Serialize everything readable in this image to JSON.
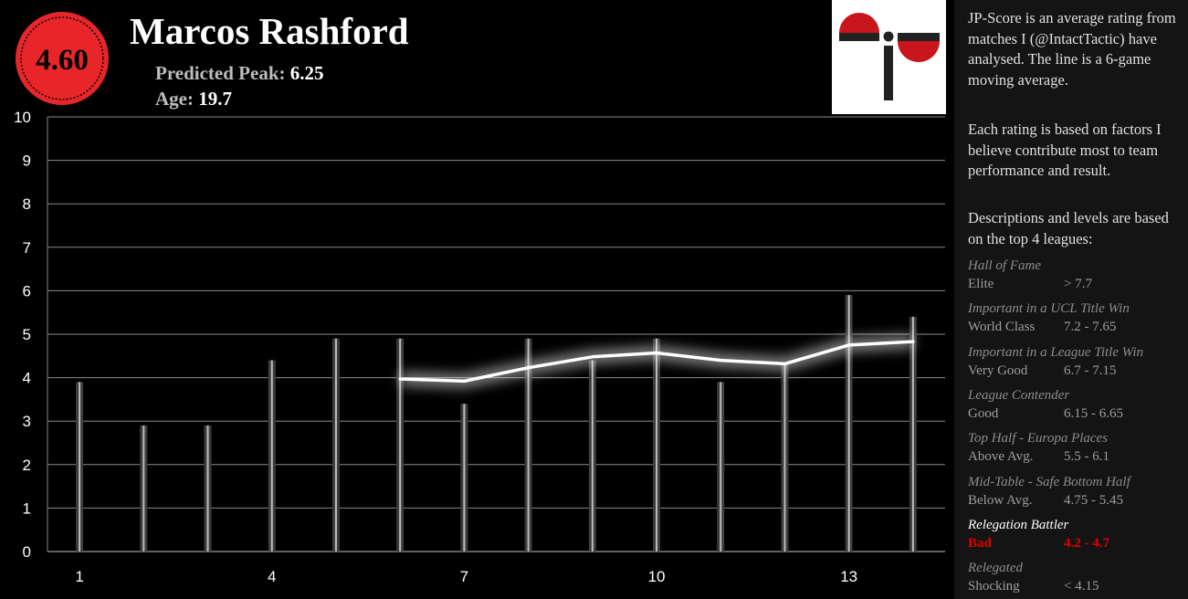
{
  "header": {
    "score": "4.60",
    "name": "Marcos Rashford",
    "peak_label": "Predicted Peak:",
    "peak_value": "6.25",
    "age_label": "Age:",
    "age_value": "19.7"
  },
  "colors": {
    "accent_red": "#e8262a",
    "badge_ring": "#e8262a",
    "bar": "#9a9a9a",
    "line": "#ffffff",
    "active_level": "#e10000"
  },
  "logo": {
    "icon": "jp-logo-icon"
  },
  "sidebar": {
    "intro": "JP-Score is an average rating from matches I (@IntactTactic) have analysed. The line is a 6-game moving average.",
    "factors": "Each rating is based on factors I believe contribute most to team performance and result.",
    "levels_intro": "Descriptions and levels are based on the top 4 leagues:",
    "levels": [
      {
        "title": "Hall of Fame",
        "name": "Elite",
        "range": "> 7.7",
        "active": false
      },
      {
        "title": "Important in a UCL Title Win",
        "name": "World Class",
        "range": "7.2 - 7.65",
        "active": false
      },
      {
        "title": "Important in a League Title Win",
        "name": "Very Good",
        "range": "6.7 - 7.15",
        "active": false
      },
      {
        "title": "League Contender",
        "name": "Good",
        "range": "6.15 - 6.65",
        "active": false
      },
      {
        "title": "Top Half - Europa Places",
        "name": "Above Avg.",
        "range": "5.5 - 6.1",
        "active": false
      },
      {
        "title": "Mid-Table - Safe Bottom Half",
        "name": "Below Avg.",
        "range": "4.75 - 5.45",
        "active": false
      },
      {
        "title": "Relegation Battler",
        "name": "Bad",
        "range": "4.2 - 4.7",
        "active": true
      },
      {
        "title": "Relegated",
        "name": "Shocking",
        "range": "< 4.15",
        "active": false
      }
    ]
  },
  "chart_data": {
    "type": "bar",
    "x": [
      1,
      2,
      3,
      4,
      5,
      6,
      7,
      8,
      9,
      10,
      11,
      12,
      13,
      14
    ],
    "x_tick_labels": [
      "1",
      "4",
      "7",
      "10",
      "13"
    ],
    "x_tick_positions": [
      1,
      4,
      7,
      10,
      13
    ],
    "y_tick_labels": [
      "0",
      "1",
      "2",
      "3",
      "4",
      "5",
      "6",
      "7",
      "8",
      "9",
      "10"
    ],
    "ylim": [
      0,
      10
    ],
    "grid": true,
    "series": [
      {
        "type": "bar",
        "values": [
          3.9,
          2.9,
          2.9,
          4.4,
          4.9,
          4.9,
          3.4,
          4.9,
          4.4,
          4.9,
          3.9,
          4.3,
          5.9,
          5.4
        ]
      },
      {
        "type": "line",
        "x": [
          6,
          7,
          8,
          9,
          10,
          11,
          12,
          13,
          14
        ],
        "values": [
          3.97,
          3.92,
          4.23,
          4.48,
          4.57,
          4.4,
          4.32,
          4.75,
          4.83
        ]
      }
    ]
  }
}
